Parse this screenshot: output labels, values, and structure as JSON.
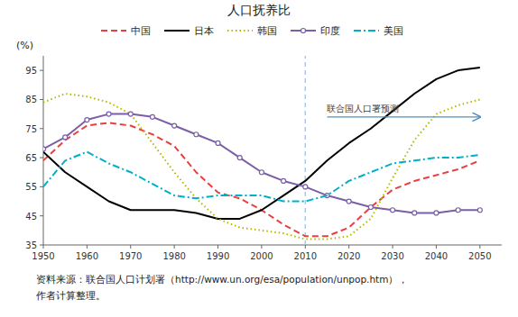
{
  "chart_data": {
    "type": "line",
    "title": "人口抚养比",
    "y_label": "(%)",
    "source": [
      "资料来源：联合国人口计划署（http://www.un.org/esa/population/unpop.htm），",
      "作者计算整理。"
    ],
    "annotations": [
      {
        "text": "联合国人口署预测",
        "x": 2015,
        "x_end": 2050,
        "y": 79
      }
    ],
    "x_reference_line": 2010,
    "x": [
      1950,
      1955,
      1960,
      1965,
      1970,
      1975,
      1980,
      1985,
      1990,
      1995,
      2000,
      2005,
      2010,
      2015,
      2020,
      2025,
      2030,
      2035,
      2040,
      2045,
      2050
    ],
    "xlim": [
      1950,
      2055
    ],
    "xticks": [
      1950,
      1960,
      1970,
      1980,
      1990,
      2000,
      2010,
      2020,
      2030,
      2040,
      2050
    ],
    "ylim": [
      35,
      100
    ],
    "yticks": [
      35,
      45,
      55,
      65,
      75,
      85,
      95
    ],
    "grid": false,
    "legend": "top",
    "series": [
      {
        "name": "中国",
        "color": "#e84040",
        "line_style": "dashed",
        "values": [
          64,
          71,
          76,
          77,
          76,
          73,
          69,
          60,
          53,
          51,
          47,
          42,
          38,
          38,
          41,
          48,
          54,
          57,
          59,
          61,
          64
        ]
      },
      {
        "name": "日本",
        "color": "#000000",
        "line_style": "solid",
        "values": [
          67,
          60,
          55,
          50,
          47,
          47,
          47,
          46,
          44,
          44,
          47,
          52,
          57,
          64,
          70,
          75,
          81,
          87,
          92,
          95,
          96
        ]
      },
      {
        "name": "韩国",
        "color": "#b5b800",
        "line_style": "dotted",
        "values": [
          84,
          87,
          86,
          84,
          80,
          70,
          60,
          51,
          44,
          41,
          40,
          39,
          37,
          37,
          38,
          44,
          58,
          71,
          80,
          83,
          85
        ]
      },
      {
        "name": "印度",
        "color": "#7b5ea7",
        "line_style": "solid",
        "marker": "circle",
        "values": [
          68,
          72,
          78,
          80,
          80,
          79,
          76,
          73,
          70,
          65,
          60,
          57,
          55,
          52,
          50,
          48,
          47,
          46,
          46,
          47,
          47
        ]
      },
      {
        "name": "美国",
        "color": "#00b0c8",
        "line_style": "dashdot",
        "values": [
          55,
          64,
          67,
          63,
          60,
          56,
          52,
          51,
          52,
          52,
          52,
          50,
          50,
          52,
          57,
          60,
          63,
          64,
          65,
          65,
          66
        ]
      }
    ]
  }
}
